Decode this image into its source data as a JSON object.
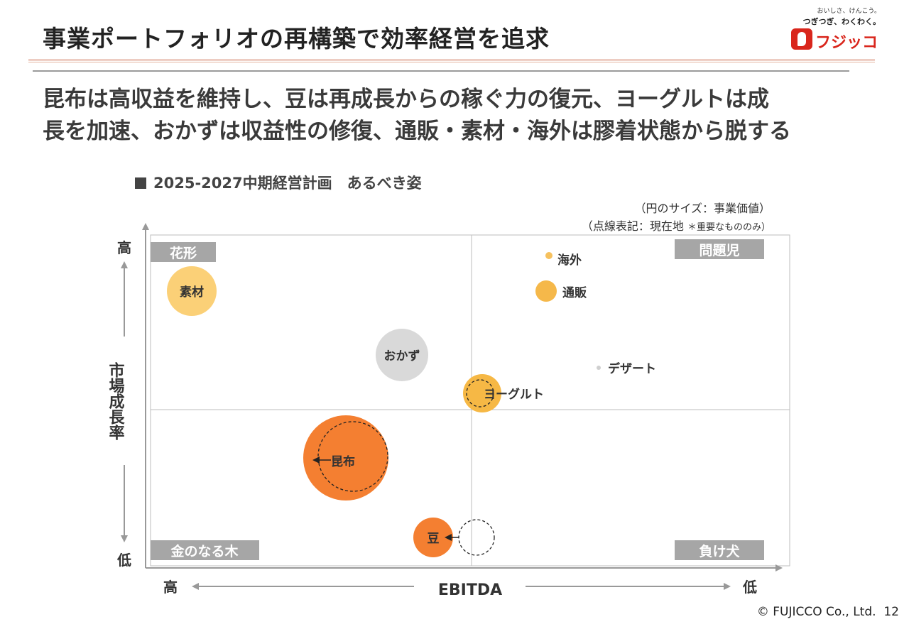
{
  "header": {
    "title": "事業ポートフォリオの再構築で効率経営を追求",
    "headline": [
      "昆布は高収益を維持し、豆は再成長からの稼ぐ力の復元、ヨーグルトは成",
      "長を加速、おかずは収益性の修復、通販・素材・海外は膠着状態から脱する"
    ]
  },
  "logo": {
    "tagline": "おいしさ、けんこう。",
    "slogan": "つぎつぎ、わくわく。",
    "name": "フジッコ"
  },
  "section_title": "2025-2027中期経営計画　あるべき姿",
  "notes": {
    "size_note": "（円のサイズ：事業価値）",
    "dashed_note": "（点線表記：現在地",
    "dashed_note_small": "＊重要なもののみ）"
  },
  "matrix": {
    "y_axis": {
      "label": "市場成長率",
      "high": "高",
      "low": "低"
    },
    "x_axis": {
      "label": "EBITDA",
      "high": "高",
      "low": "低"
    },
    "quadrants": {
      "top_left": "花形",
      "top_right": "問題児",
      "bottom_left": "金のなる木",
      "bottom_right": "負け犬"
    },
    "bubbles": [
      {
        "name": "素材",
        "color": "#fbd077"
      },
      {
        "name": "海外",
        "color": "#f6c15e"
      },
      {
        "name": "通販",
        "color": "#f5b84a"
      },
      {
        "name": "おかず",
        "color": "#d9d9d9"
      },
      {
        "name": "デザート",
        "color": "#cfcfcf"
      },
      {
        "name": "ヨーグルト",
        "color": "#f6b845"
      },
      {
        "name": "昆布",
        "color": "#f47f31"
      },
      {
        "name": "豆",
        "color": "#f47f31"
      }
    ]
  },
  "footer": {
    "copyright": "© FUJICCO Co., Ltd.",
    "page": "12"
  }
}
